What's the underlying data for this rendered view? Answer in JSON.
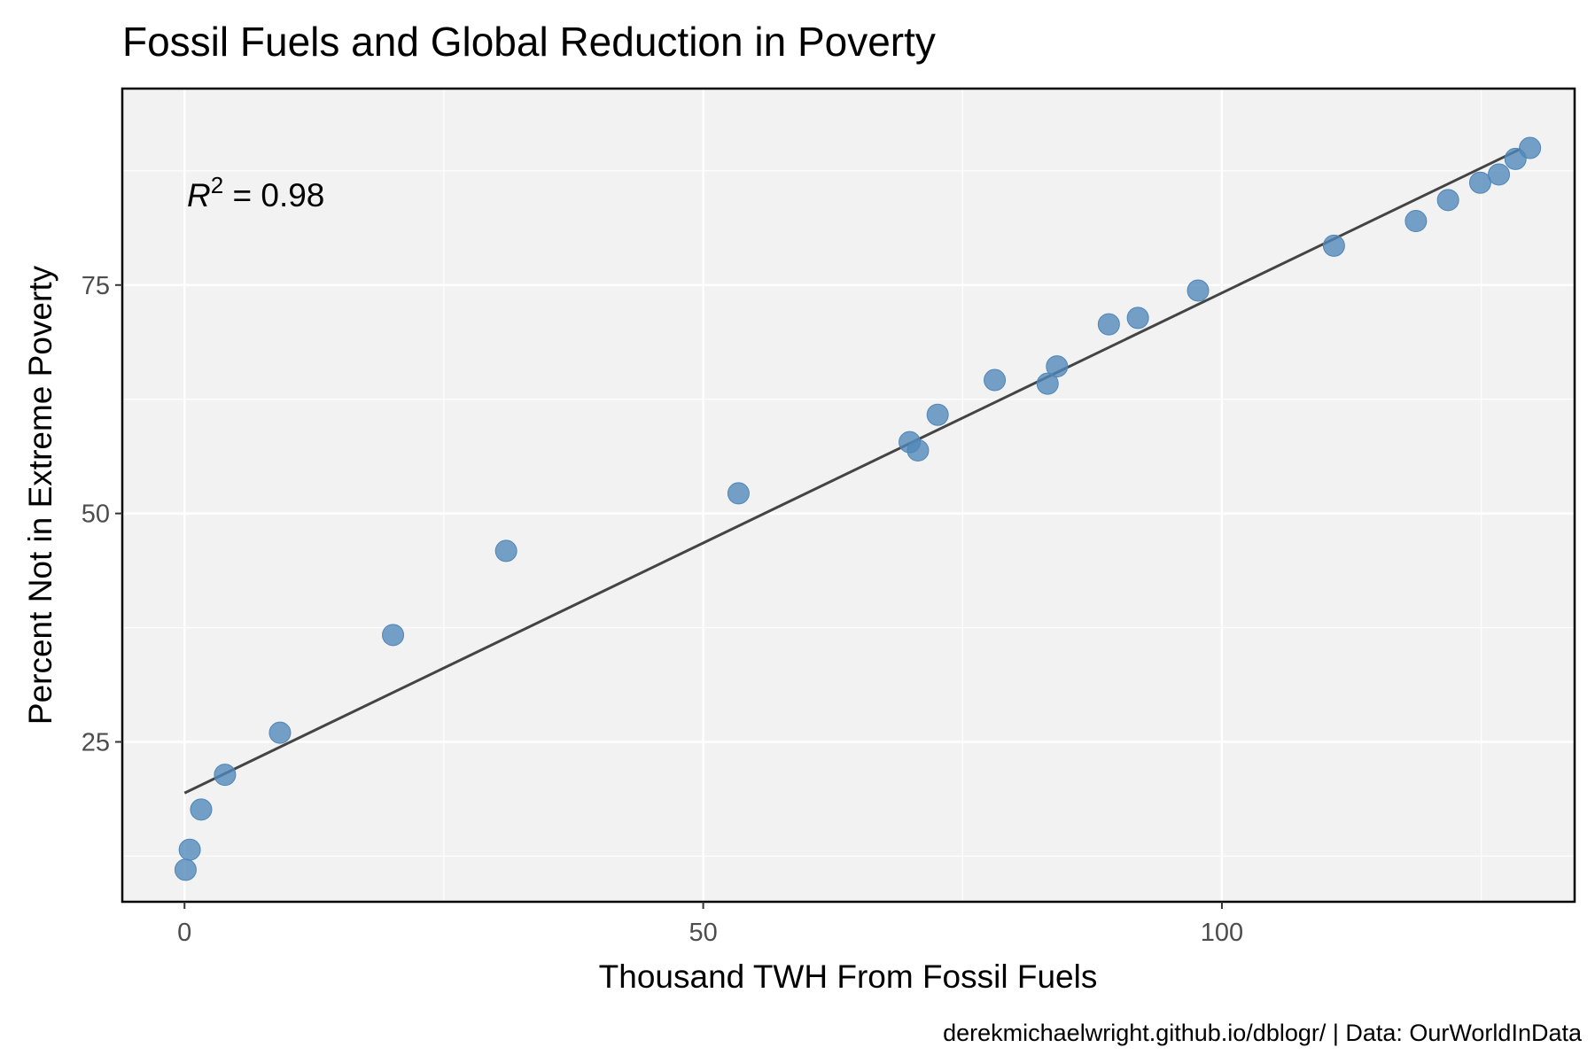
{
  "chart_data": {
    "type": "scatter",
    "title": "Fossil Fuels and Global Reduction in Poverty",
    "xlabel": "Thousand TWH From Fossil Fuels",
    "ylabel": "Percent Not in Extreme Poverty",
    "caption": "derekmichaelwright.github.io/dblogr/ | Data: OurWorldInData",
    "annotation": {
      "lhs": "R",
      "sup": "2",
      "rhs": " = 0.98"
    },
    "xlim": [
      -6,
      134
    ],
    "ylim": [
      7.5,
      96.5
    ],
    "x_ticks": [
      0,
      50,
      100
    ],
    "y_ticks": [
      25,
      50,
      75
    ],
    "grid": true,
    "points": [
      {
        "x": 0.1,
        "y": 11.0
      },
      {
        "x": 0.5,
        "y": 13.2
      },
      {
        "x": 1.6,
        "y": 17.6
      },
      {
        "x": 3.9,
        "y": 21.4
      },
      {
        "x": 9.2,
        "y": 26.0
      },
      {
        "x": 20.1,
        "y": 36.7
      },
      {
        "x": 31.0,
        "y": 45.9
      },
      {
        "x": 53.4,
        "y": 52.2
      },
      {
        "x": 69.9,
        "y": 57.8
      },
      {
        "x": 70.7,
        "y": 56.9
      },
      {
        "x": 72.6,
        "y": 60.8
      },
      {
        "x": 78.1,
        "y": 64.6
      },
      {
        "x": 83.2,
        "y": 64.2
      },
      {
        "x": 84.1,
        "y": 66.1
      },
      {
        "x": 89.1,
        "y": 70.7
      },
      {
        "x": 91.9,
        "y": 71.4
      },
      {
        "x": 97.7,
        "y": 74.4
      },
      {
        "x": 110.8,
        "y": 79.3
      },
      {
        "x": 118.7,
        "y": 82.0
      },
      {
        "x": 121.8,
        "y": 84.3
      },
      {
        "x": 124.9,
        "y": 86.2
      },
      {
        "x": 126.7,
        "y": 87.1
      },
      {
        "x": 128.3,
        "y": 88.8
      },
      {
        "x": 129.7,
        "y": 90.0
      }
    ],
    "fit_line": {
      "x": [
        0,
        128.8
      ],
      "y": [
        19.4,
        89.9
      ]
    },
    "colors": {
      "point": "#4f86b8",
      "line": "#444444",
      "panel": "#f2f2f2",
      "grid": "#ffffff",
      "border": "#000000"
    }
  }
}
